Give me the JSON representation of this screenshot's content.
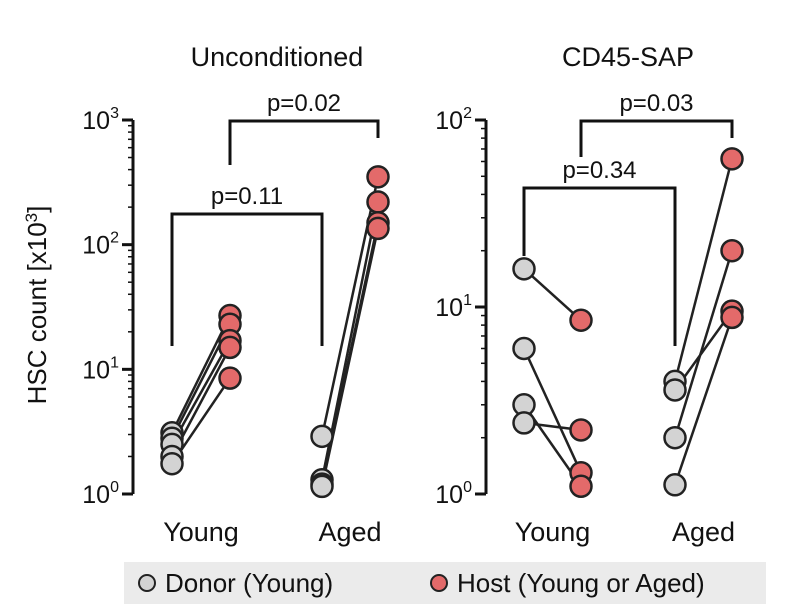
{
  "figure": {
    "ylabel": "HSC count [x10",
    "ylabel_sup": "3",
    "ylabel_end": "]"
  },
  "colors": {
    "donor": "#d3d3d3",
    "host": "#e36a6a",
    "stroke": "#222222"
  },
  "legend": [
    {
      "label": "Donor (Young)",
      "color": "#d3d3d3"
    },
    {
      "label": "Host (Young or Aged)",
      "color": "#e36a6a"
    }
  ],
  "chart_data": [
    {
      "type": "scatter",
      "title": "Unconditioned",
      "yscale": "log",
      "ylim": [
        1,
        1000
      ],
      "ticks": [
        {
          "base": "10",
          "exp": "0"
        },
        {
          "base": "10",
          "exp": "1"
        },
        {
          "base": "10",
          "exp": "2"
        },
        {
          "base": "10",
          "exp": "3"
        }
      ],
      "categories": [
        "Young",
        "Aged"
      ],
      "pairs": [
        {
          "group": "Young",
          "donor": 3.1,
          "host": 27
        },
        {
          "group": "Young",
          "donor": 2.8,
          "host": 23
        },
        {
          "group": "Young",
          "donor": 2.5,
          "host": 17
        },
        {
          "group": "Young",
          "donor": 2.0,
          "host": 15
        },
        {
          "group": "Young",
          "donor": 1.75,
          "host": 8.5
        },
        {
          "group": "Aged",
          "donor": 2.9,
          "host": 350
        },
        {
          "group": "Aged",
          "donor": 1.3,
          "host": 220
        },
        {
          "group": "Aged",
          "donor": 1.2,
          "host": 150
        },
        {
          "group": "Aged",
          "donor": 1.15,
          "host": 135
        }
      ],
      "brackets": [
        {
          "label": "p=0.11",
          "from": "Young",
          "to": "Aged"
        },
        {
          "label": "p=0.02",
          "from": "Young",
          "to": "Aged"
        }
      ]
    },
    {
      "type": "scatter",
      "title": "CD45-SAP",
      "yscale": "log",
      "ylim": [
        1,
        100
      ],
      "ticks": [
        {
          "base": "10",
          "exp": "0"
        },
        {
          "base": "10",
          "exp": "1"
        },
        {
          "base": "10",
          "exp": "2"
        }
      ],
      "categories": [
        "Young",
        "Aged"
      ],
      "pairs": [
        {
          "group": "Young",
          "donor": 16,
          "host": 8.5
        },
        {
          "group": "Young",
          "donor": 6.0,
          "host": 1.3
        },
        {
          "group": "Young",
          "donor": 3.0,
          "host": 1.1
        },
        {
          "group": "Young",
          "donor": 2.4,
          "host": 2.2
        },
        {
          "group": "Aged",
          "donor": 4.0,
          "host": 62
        },
        {
          "group": "Aged",
          "donor": 3.6,
          "host": 9.5
        },
        {
          "group": "Aged",
          "donor": 2.0,
          "host": 20
        },
        {
          "group": "Aged",
          "donor": 1.12,
          "host": 8.8
        }
      ],
      "brackets": [
        {
          "label": "p=0.34",
          "from": "Young",
          "to": "Aged"
        },
        {
          "label": "p=0.03",
          "from": "Young",
          "to": "Aged"
        }
      ]
    }
  ]
}
